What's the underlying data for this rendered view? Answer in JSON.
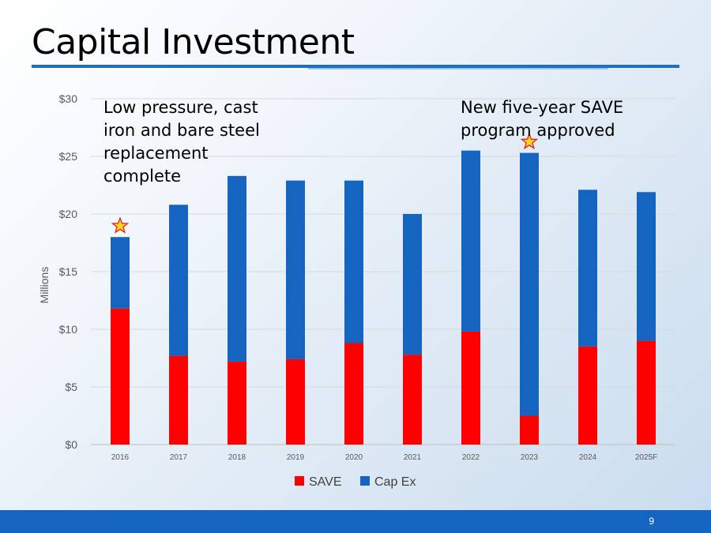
{
  "slide": {
    "title": "Capital Investment",
    "page_number": "9"
  },
  "annotations": {
    "left": [
      "Low pressure, cast",
      "iron and bare steel",
      "replacement",
      "complete"
    ],
    "right": [
      "New five-year SAVE",
      "program approved"
    ]
  },
  "colors": {
    "save": "#ff0000",
    "capex": "#1565c0",
    "accent": "#1e6fbf",
    "star_fill": "#ffd21f",
    "star_stroke": "#e32020"
  },
  "chart_data": {
    "type": "bar",
    "stacked": true,
    "title": "",
    "xlabel": "",
    "ylabel": "Millions",
    "ylim": [
      0,
      30
    ],
    "yticks": [
      0,
      5,
      10,
      15,
      20,
      25,
      30
    ],
    "ytick_labels": [
      "$0",
      "$5",
      "$10",
      "$15",
      "$20",
      "$25",
      "$30"
    ],
    "categories": [
      "2016",
      "2017",
      "2018",
      "2019",
      "2020",
      "2021",
      "2022",
      "2023",
      "2024",
      "2025F"
    ],
    "series": [
      {
        "name": "SAVE",
        "values": [
          11.8,
          7.7,
          7.2,
          7.4,
          8.8,
          7.8,
          9.8,
          2.5,
          8.5,
          9.0
        ]
      },
      {
        "name": "Cap Ex",
        "values": [
          6.2,
          13.1,
          16.1,
          15.5,
          14.1,
          12.2,
          15.7,
          22.8,
          13.6,
          12.9
        ]
      }
    ],
    "legend_position": "bottom-center",
    "star_markers": [
      "2016",
      "2023"
    ],
    "grid": true
  }
}
